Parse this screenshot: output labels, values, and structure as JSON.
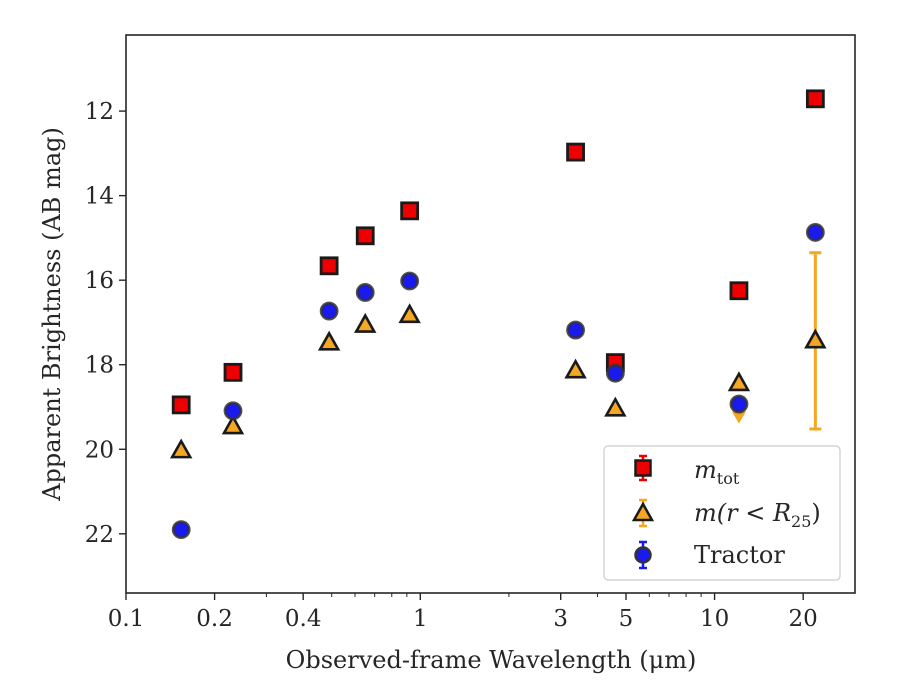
{
  "chart_data": {
    "type": "scatter",
    "xlabel": "Observed-frame Wavelength (μm)",
    "ylabel": "Apparent Brightness (AB mag)",
    "xscale": "log",
    "xlim": [
      0.1,
      30
    ],
    "ylim": [
      23.4,
      10.2
    ],
    "y_inverted": true,
    "x_ticks": [
      0.1,
      0.2,
      0.4,
      1,
      3,
      5,
      10,
      20
    ],
    "x_tick_labels": [
      "0.1",
      "0.2",
      "0.4",
      "1",
      "3",
      "5",
      "10",
      "20"
    ],
    "y_ticks": [
      12,
      14,
      16,
      18,
      20,
      22
    ],
    "y_tick_labels": [
      "12",
      "14",
      "16",
      "18",
      "20",
      "22"
    ],
    "grid": false,
    "legend_position": "bottom-right",
    "series": [
      {
        "name": "m_tot",
        "marker": "square",
        "color": "#ee0000",
        "edge_color": "#1a1a1a",
        "x": [
          0.154,
          0.231,
          0.49,
          0.65,
          0.92,
          3.37,
          4.6,
          12.1,
          22.0
        ],
        "y": [
          18.95,
          18.18,
          15.66,
          14.95,
          14.36,
          12.97,
          17.95,
          16.25,
          11.71
        ]
      },
      {
        "name": "m(r < R25)",
        "marker": "triangle",
        "color": "#f5a623",
        "edge_color": "#1a1a1a",
        "x": [
          0.154,
          0.231,
          0.49,
          0.65,
          0.92,
          3.37,
          4.6,
          12.1,
          22.0
        ],
        "y": [
          20.02,
          19.45,
          17.47,
          17.05,
          16.82,
          18.13,
          19.03,
          18.43,
          17.42
        ],
        "upper_limit": {
          "x": 12.1,
          "y": 19.25
        },
        "error_bar": {
          "x": 22.0,
          "ylow": 15.35,
          "yhigh": 19.52
        }
      },
      {
        "name": "Tractor",
        "marker": "circle",
        "color": "#1a1aee",
        "edge_color": "#333333",
        "x": [
          0.154,
          0.231,
          0.49,
          0.65,
          0.92,
          3.37,
          4.6,
          12.1,
          22.0
        ],
        "y": [
          21.9,
          19.09,
          16.73,
          16.29,
          16.02,
          17.18,
          18.2,
          18.93,
          14.87
        ]
      }
    ]
  },
  "legend": {
    "mtot_base": "m",
    "mtot_sub": "tot",
    "mr_text": "m(r < R",
    "mr_sub": "25",
    "mr_close": ")",
    "tractor_label": "Tractor"
  }
}
